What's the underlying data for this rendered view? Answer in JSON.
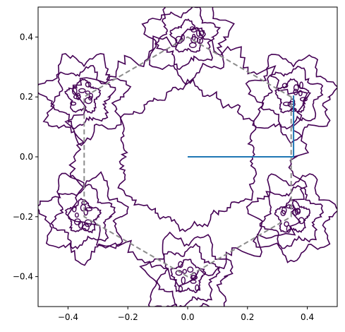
{
  "chart_data": {
    "type": "contour",
    "title": "",
    "xlabel": "",
    "ylabel": "",
    "xlim": [
      -0.5,
      0.5
    ],
    "ylim": [
      -0.5,
      0.5
    ],
    "grid": false,
    "x_ticks": [
      -0.4,
      -0.2,
      0.0,
      0.2,
      0.4
    ],
    "x_tick_labels": [
      "−0.4",
      "−0.2",
      "0.0",
      "0.2",
      "0.4"
    ],
    "y_ticks": [
      0.4,
      0.2,
      0.0,
      -0.2,
      -0.4
    ],
    "y_tick_labels": [
      "0.4",
      "0.2",
      "0.0",
      "−0.2",
      "−0.4"
    ],
    "colors": {
      "contour": "#440154",
      "hexagon": "#8c8c8c",
      "vector": "#1f77b4",
      "axes": "#000000"
    },
    "hexagon": {
      "style": "dashed",
      "vertices": [
        [
          0.346,
          0.2
        ],
        [
          0.0,
          0.4
        ],
        [
          -0.346,
          0.2
        ],
        [
          -0.346,
          -0.2
        ],
        [
          0.0,
          -0.4
        ],
        [
          0.346,
          -0.2
        ]
      ]
    },
    "vector_path": [
      [
        0.0,
        0.0
      ],
      [
        0.354,
        0.0
      ],
      [
        0.354,
        0.205
      ]
    ],
    "contour_rings": [
      {
        "name": "inner-hexagonal-boundary",
        "radius": 0.25,
        "amplitude": 0.02
      },
      {
        "name": "outer-hexagonal-boundary",
        "radius": 0.43,
        "amplitude": 0.04
      }
    ],
    "contour_clusters": [
      {
        "center": [
          0.35,
          0.2
        ],
        "rings": [
          0.05,
          0.09,
          0.13
        ]
      },
      {
        "center": [
          -0.35,
          0.2
        ],
        "rings": [
          0.05,
          0.09,
          0.13
        ]
      },
      {
        "center": [
          0.35,
          -0.2
        ],
        "rings": [
          0.05,
          0.09,
          0.13
        ]
      },
      {
        "center": [
          -0.35,
          -0.2
        ],
        "rings": [
          0.05,
          0.09,
          0.13
        ]
      },
      {
        "center": [
          0.0,
          0.4
        ],
        "rings": [
          0.05,
          0.09,
          0.13
        ]
      },
      {
        "center": [
          0.0,
          -0.4
        ],
        "rings": [
          0.05,
          0.09,
          0.13
        ]
      }
    ]
  }
}
